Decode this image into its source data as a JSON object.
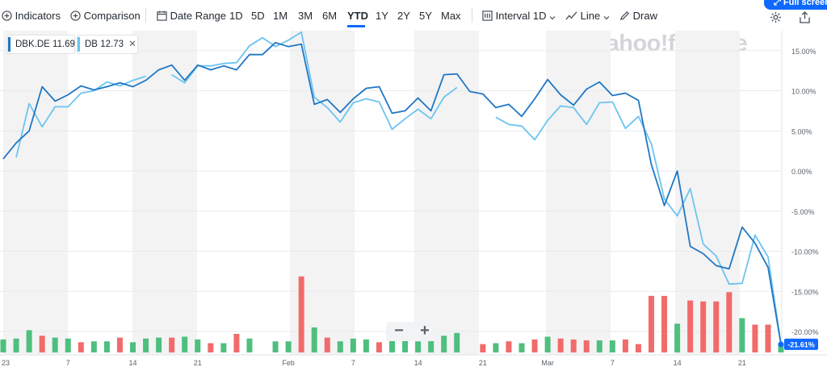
{
  "toolbar": {
    "indicators": "Indicators",
    "comparison": "Comparison",
    "date_range": "Date Range",
    "ranges": [
      "1D",
      "5D",
      "1M",
      "3M",
      "6M",
      "YTD",
      "1Y",
      "2Y",
      "5Y",
      "Max"
    ],
    "active_range": "YTD",
    "interval_label": "Interval",
    "interval_value": "1D",
    "chart_type": "Line",
    "draw": "Draw",
    "fullscreen": "Full screen"
  },
  "legend": [
    {
      "symbol": "DBK.DE",
      "value": "11.69",
      "color": "#1f77c4"
    },
    {
      "symbol": "DB",
      "value": "12.73",
      "color": "#6cc4f0"
    }
  ],
  "watermark": "yahoo!finance",
  "colors": {
    "primary_line": "#1f77c4",
    "secondary_line": "#6cc4f0",
    "volume_up": "#4fbf7f",
    "volume_down": "#f26b6b",
    "last_value_badge": "#0f69ff",
    "band": "#f3f3f4"
  },
  "chart_data": {
    "type": "line",
    "title": "",
    "x_tick_labels": [
      "23",
      "7",
      "14",
      "21",
      "Feb",
      "7",
      "14",
      "21",
      "Mar",
      "7",
      "14",
      "21"
    ],
    "y_tick_labels": [
      "15.00%",
      "10.00%",
      "5.00%",
      "0.00%",
      "-5.00%",
      "-10.00%",
      "-15.00%",
      "-20.00%"
    ],
    "ylim": [
      -21.61,
      17.3
    ],
    "y_axis_unit": "% change",
    "last_value_label": "-21.61%",
    "grid": true,
    "legend_position": "top-left",
    "series": [
      {
        "name": "DBK.DE",
        "values": [
          1.5,
          3.5,
          5.0,
          10.5,
          8.7,
          9.5,
          10.6,
          10.1,
          10.5,
          11.0,
          10.5,
          11.3,
          12.6,
          13.2,
          11.3,
          13.2,
          12.6,
          13.1,
          12.6,
          14.5,
          14.5,
          16.0,
          15.5,
          15.8,
          8.3,
          8.9,
          7.3,
          9.0,
          10.3,
          10.5,
          7.2,
          7.5,
          9.1,
          7.5,
          12.0,
          12.1,
          9.9,
          9.6,
          7.9,
          8.3,
          6.8,
          9.0,
          11.4,
          9.5,
          8.2,
          10.2,
          11.1,
          9.4,
          9.7,
          8.8,
          0.8,
          -4.3,
          0.0,
          -9.4,
          -10.3,
          -11.8,
          -12.2,
          -7.0,
          -9.0,
          -12.0,
          -21.6
        ],
        "color": "#1f77c4"
      },
      {
        "name": "DB",
        "values": [
          null,
          1.7,
          8.4,
          5.5,
          8.0,
          8.0,
          9.7,
          10.0,
          11.1,
          10.6,
          11.3,
          11.8,
          null,
          12.0,
          11.0,
          13.1,
          13.1,
          13.4,
          13.5,
          15.6,
          16.6,
          15.5,
          16.3,
          17.3,
          9.2,
          7.9,
          6.1,
          8.5,
          9.0,
          8.6,
          5.2,
          6.5,
          7.7,
          6.5,
          9.2,
          10.4,
          null,
          null,
          6.7,
          5.8,
          5.6,
          3.9,
          6.3,
          8.1,
          7.9,
          5.8,
          8.5,
          8.6,
          5.3,
          6.8,
          3.4,
          -3.5,
          -5.6,
          -2.2,
          -9.1,
          -10.6,
          -14.1,
          -14.0,
          -8.0,
          -10.7,
          -21.6
        ],
        "color": "#6cc4f0"
      }
    ],
    "volume": {
      "values": [
        14,
        15,
        24,
        18,
        16,
        15,
        11,
        12,
        12,
        16,
        11,
        15,
        16,
        16,
        17,
        14,
        10,
        10,
        20,
        15,
        0,
        12,
        12,
        82,
        27,
        16,
        12,
        15,
        14,
        11,
        16,
        19,
        12,
        15,
        18,
        21,
        0,
        9,
        10,
        12,
        10,
        14,
        17,
        15,
        14,
        13,
        13,
        13,
        14,
        9,
        61,
        61,
        31,
        56,
        55,
        55,
        65,
        37,
        30,
        30,
        10
      ],
      "direction": [
        "up",
        "up",
        "up",
        "down",
        "up",
        "up",
        "down",
        "up",
        "up",
        "down",
        "up",
        "up",
        "up",
        "down",
        "up",
        "up",
        "down",
        "up",
        "down",
        "up",
        "none",
        "up",
        "up",
        "down",
        "up",
        "down",
        "up",
        "up",
        "up",
        "down",
        "up",
        "up",
        "up",
        "up",
        "up",
        "up",
        "none",
        "down",
        "up",
        "down",
        "up",
        "down",
        "up",
        "down",
        "down",
        "down",
        "up",
        "up",
        "down",
        "down",
        "down",
        "down",
        "up",
        "down",
        "down",
        "down",
        "down",
        "up",
        "down",
        "down",
        "up"
      ]
    }
  }
}
